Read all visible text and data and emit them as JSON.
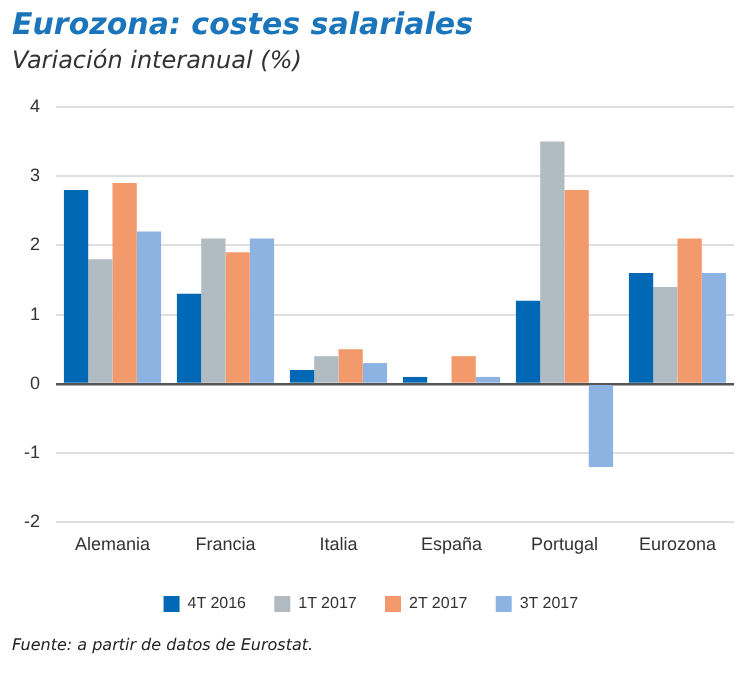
{
  "chart_data": {
    "type": "bar",
    "title": "Eurozona: costes salariales",
    "subtitle": "Variación interanual (%)",
    "categories": [
      "Alemania",
      "Francia",
      "Italia",
      "España",
      "Portugal",
      "Eurozona"
    ],
    "series": [
      {
        "name": "4T 2016",
        "color": "#0068b4",
        "values": [
          2.8,
          1.3,
          0.2,
          0.1,
          1.2,
          1.6
        ]
      },
      {
        "name": "1T 2017",
        "color": "#b1bcc2",
        "values": [
          1.8,
          2.1,
          0.4,
          0,
          3.5,
          1.4
        ]
      },
      {
        "name": "2T 2017",
        "color": "#f29a6c",
        "values": [
          2.9,
          1.9,
          0.5,
          0.4,
          2.8,
          2.1
        ]
      },
      {
        "name": "3T 2017",
        "color": "#8db3e2",
        "values": [
          2.2,
          2.1,
          0.3,
          0.1,
          -1.2,
          1.6
        ]
      }
    ],
    "ylim": [
      -2,
      4
    ],
    "yticks": [
      -2,
      -1,
      0,
      1,
      2,
      3,
      4
    ],
    "grid": "y",
    "legend": "bottom",
    "annotations": [
      "Fuente: a partir de datos de Eurostat."
    ]
  }
}
